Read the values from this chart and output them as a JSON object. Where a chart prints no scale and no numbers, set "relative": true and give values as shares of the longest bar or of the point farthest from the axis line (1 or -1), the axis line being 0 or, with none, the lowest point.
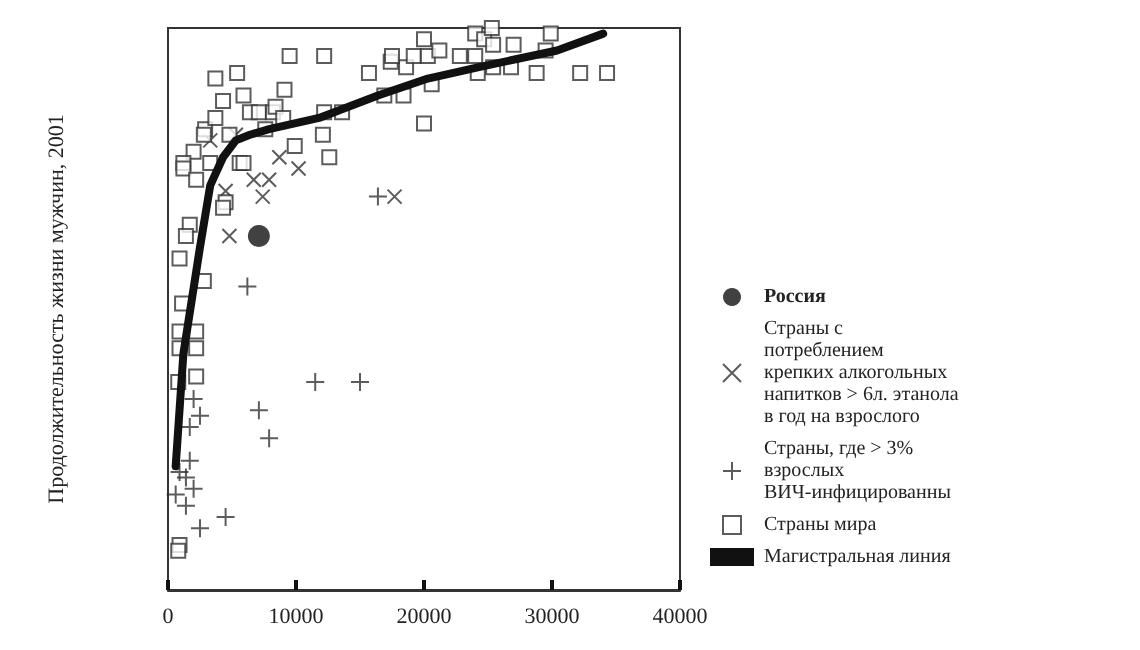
{
  "chart_data": {
    "type": "scatter",
    "relative": true,
    "ylabel": "Продолжительность жизни мужчин, 2001",
    "xlim": [
      0,
      40000
    ],
    "xticks": [
      0,
      10000,
      20000,
      30000,
      40000
    ],
    "grid": false,
    "legend": "right",
    "series": [
      {
        "name": "Россия",
        "color": "#111111",
        "marker": "circle",
        "x": [
          7100
        ],
        "values": [
          0.63
        ]
      },
      {
        "name": "Страны с потреблением крепких алкогольных напитков > 6л. этанола в год на взрослого",
        "color": "#333333",
        "marker": "cross",
        "x": [
          3300,
          5300,
          8700,
          10200,
          6700,
          7900,
          7400,
          4500,
          4800,
          17700
        ],
        "values": [
          0.8,
          0.81,
          0.77,
          0.75,
          0.73,
          0.73,
          0.7,
          0.71,
          0.63,
          0.7
        ]
      },
      {
        "name": "Страны, где > 3% взрослых ВИЧ-инфицированны",
        "color": "#333333",
        "x": [
          16400,
          6200,
          2000,
          2500,
          1700,
          1700,
          900,
          1400,
          2000,
          600,
          1400,
          2500,
          4500,
          7100,
          7900,
          11500,
          15000
        ],
        "values": [
          0.7,
          0.54,
          0.34,
          0.31,
          0.29,
          0.23,
          0.21,
          0.2,
          0.18,
          0.17,
          0.15,
          0.11,
          0.13,
          0.32,
          0.27,
          0.37,
          0.37
        ]
      },
      {
        "name": "Страны мира",
        "color": "#333333",
        "marker": "square",
        "x": [
          17400,
          18600,
          19200,
          20000,
          20300,
          21200,
          22800,
          24000,
          24200,
          24000,
          24700,
          25300,
          25400,
          25400,
          26800,
          27000,
          28800,
          29500,
          29900,
          32200,
          34300,
          16900,
          18400,
          20600,
          20000,
          9500,
          12200,
          15700,
          17500,
          5400,
          3700,
          5900,
          9100,
          4300,
          6400,
          7100,
          8200,
          8400,
          9000,
          2900,
          3700,
          2800,
          4800,
          7600,
          9900,
          12200,
          13600,
          12100,
          12600,
          2000,
          1200,
          1200,
          2200,
          3300,
          5600,
          5900,
          4500,
          4300,
          1700,
          1400,
          900,
          2800,
          1100,
          900,
          2200,
          900,
          2200,
          800,
          2200,
          900,
          800
        ],
        "values": [
          0.94,
          0.93,
          0.95,
          0.98,
          0.95,
          0.96,
          0.95,
          0.95,
          0.92,
          0.99,
          0.98,
          1.0,
          0.97,
          0.93,
          0.93,
          0.97,
          0.92,
          0.96,
          0.99,
          0.92,
          0.92,
          0.88,
          0.88,
          0.9,
          0.83,
          0.95,
          0.95,
          0.92,
          0.95,
          0.92,
          0.91,
          0.88,
          0.89,
          0.87,
          0.85,
          0.85,
          0.85,
          0.86,
          0.84,
          0.82,
          0.84,
          0.81,
          0.81,
          0.82,
          0.79,
          0.85,
          0.85,
          0.81,
          0.77,
          0.78,
          0.76,
          0.75,
          0.73,
          0.76,
          0.76,
          0.76,
          0.69,
          0.68,
          0.65,
          0.63,
          0.59,
          0.55,
          0.51,
          0.46,
          0.46,
          0.43,
          0.43,
          0.37,
          0.38,
          0.08,
          0.07
        ]
      },
      {
        "name": "Магистральная линия",
        "type": "line",
        "color": "#111111",
        "line_style": "solid",
        "marker": "none",
        "x": [
          600,
          1200,
          2500,
          3300,
          4300,
          5300,
          6400,
          7900,
          11800,
          16400,
          20300,
          24200,
          30400,
          34000
        ],
        "values": [
          0.22,
          0.42,
          0.61,
          0.72,
          0.77,
          0.8,
          0.81,
          0.82,
          0.84,
          0.88,
          0.91,
          0.93,
          0.96,
          0.99
        ]
      }
    ]
  }
}
